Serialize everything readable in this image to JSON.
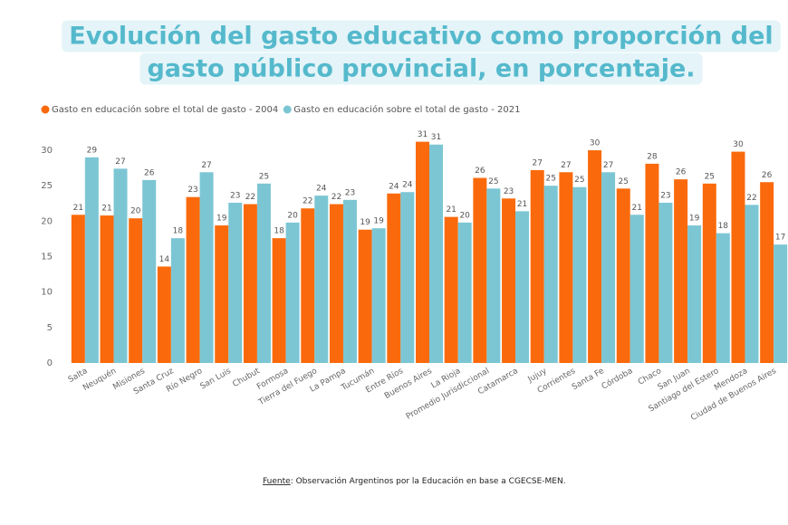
{
  "chart_data": {
    "type": "bar",
    "title": [
      "Evolución del gasto educativo como proporción del",
      "gasto público provincial, en porcentaje."
    ],
    "categories": [
      "Salta",
      "Neuquén",
      "Misiones",
      "Santa Cruz",
      "Río Negro",
      "San Luis",
      "Chubut",
      "Formosa",
      "Tierra del Fuego",
      "La Pampa",
      "Tucumán",
      "Entre Ríos",
      "Buenos Aires",
      "La Rioja",
      "Promedio Jurisdiccional",
      "Catamarca",
      "Jujuy",
      "Corrientes",
      "Santa Fe",
      "Córdoba",
      "Chaco",
      "San Juan",
      "Santiago del Estero",
      "Mendoza",
      "Ciudad de Buenos Aires"
    ],
    "series": [
      {
        "name": "Gasto en educación sobre el total de gasto - 2004",
        "color": "#fa6a0c",
        "values": [
          20.9,
          20.8,
          20.4,
          13.6,
          23.4,
          19.4,
          22.4,
          17.6,
          21.8,
          22.4,
          18.8,
          23.9,
          31.2,
          20.6,
          26.1,
          23.2,
          27.2,
          26.9,
          30.0,
          24.6,
          28.1,
          25.9,
          25.3,
          29.8,
          25.5
        ],
        "value_labels": [
          "21",
          "21",
          "20",
          "14",
          "23",
          "19",
          "22",
          "18",
          "22",
          "22",
          "19",
          "24",
          "31",
          "21",
          "26",
          "23",
          "27",
          "27",
          "30",
          "25",
          "28",
          "26",
          "25",
          "30",
          "26"
        ]
      },
      {
        "name": "Gasto en educación sobre el total de gasto - 2021",
        "color": "#7cc6d4",
        "values": [
          29.0,
          27.4,
          25.8,
          17.6,
          26.9,
          22.6,
          25.3,
          19.8,
          23.6,
          23.0,
          19.0,
          24.1,
          30.8,
          19.8,
          24.6,
          21.4,
          25.0,
          24.8,
          26.9,
          20.9,
          22.6,
          19.4,
          18.3,
          22.3,
          16.7
        ],
        "value_labels": [
          "29",
          "27",
          "26",
          "18",
          "27",
          "23",
          "25",
          "20",
          "24",
          "23",
          "19",
          "24",
          "31",
          "20",
          "25",
          "21",
          "25",
          "25",
          "27",
          "21",
          "23",
          "19",
          "18",
          "22",
          "17"
        ]
      }
    ],
    "ylim": [
      0,
      30
    ],
    "yticks": [
      0,
      5,
      10,
      15,
      20,
      25,
      30
    ],
    "grid": false,
    "legend": "top-left",
    "source_label": "Fuente",
    "source": ": Observación Argentinos por la Educación en base a CGECSE-MEN."
  }
}
